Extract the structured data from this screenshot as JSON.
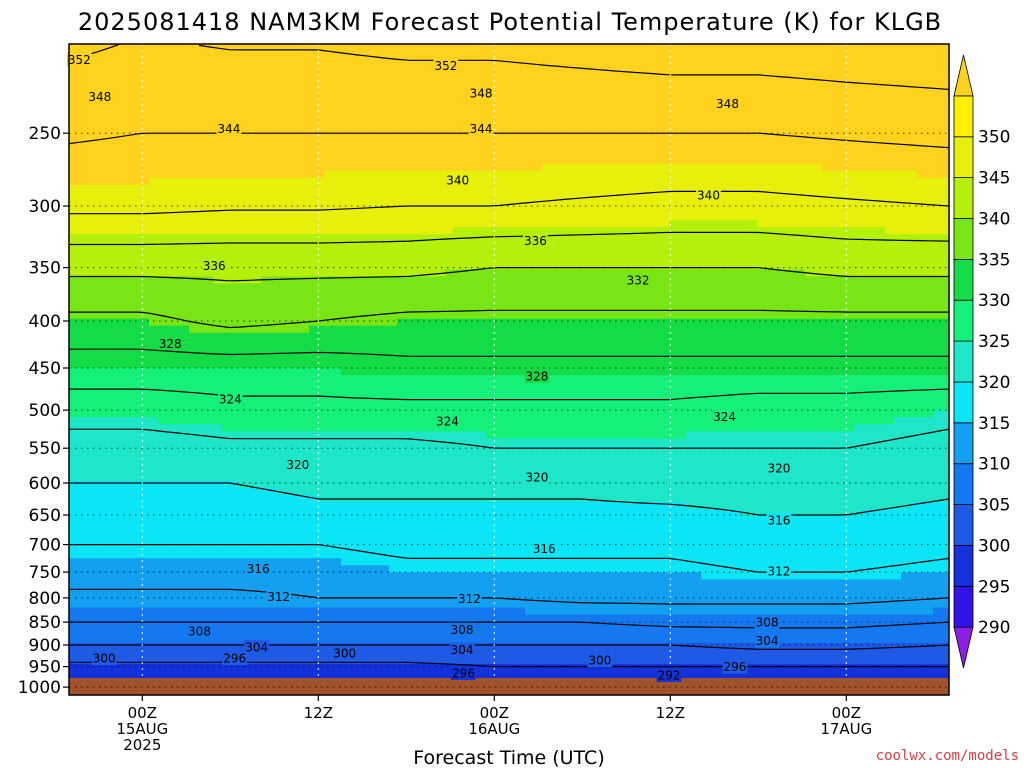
{
  "chart_data": {
    "type": "heatmap",
    "title": "2025081418 NAM3KM Forecast Potential Temperature (K) for KLGB",
    "xlabel": "Forecast Time (UTC)",
    "ylabel": "",
    "y_scale": "log",
    "y_reversed": true,
    "y_ticks": [
      250,
      300,
      350,
      400,
      450,
      500,
      550,
      600,
      650,
      700,
      750,
      800,
      850,
      900,
      950,
      1000
    ],
    "ylim": [
      1020,
      200
    ],
    "x_range_hours": [
      -5,
      55
    ],
    "x_ticks": [
      {
        "hour": 0,
        "lines": [
          "00Z",
          "15AUG",
          "2025"
        ]
      },
      {
        "hour": 12,
        "lines": [
          "12Z"
        ]
      },
      {
        "hour": 24,
        "lines": [
          "00Z",
          "16AUG"
        ]
      },
      {
        "hour": 36,
        "lines": [
          "12Z"
        ]
      },
      {
        "hour": 48,
        "lines": [
          "00Z",
          "17AUG"
        ]
      }
    ],
    "grid": "dotted",
    "colorbar": {
      "levels": [
        290,
        295,
        300,
        305,
        310,
        315,
        320,
        325,
        330,
        335,
        340,
        345,
        350
      ],
      "colors": [
        "#8c1ee6",
        "#3214e6",
        "#1432dc",
        "#1e5ae6",
        "#1478f0",
        "#14a0f0",
        "#0ae6f5",
        "#1ee6c8",
        "#14f078",
        "#14dc46",
        "#78e614",
        "#b4f00a",
        "#e6f00a",
        "#fff000",
        "#ffd21e"
      ],
      "labels": [
        "290",
        "295",
        "300",
        "305",
        "310",
        "315",
        "320",
        "325",
        "330",
        "335",
        "340",
        "345",
        "350"
      ]
    },
    "contour_interval": 4,
    "profiles": [
      {
        "hour": -5,
        "theta": [
          352.5,
          349,
          341,
          335,
          330,
          326,
          322,
          320,
          318,
          316,
          314,
          311,
          308,
          304,
          299,
          296
        ]
      },
      {
        "hour": 0,
        "theta": [
          352,
          349,
          341,
          335,
          330,
          326,
          322,
          320,
          318,
          316,
          314,
          311,
          308,
          304,
          299,
          296
        ]
      },
      {
        "hour": 6,
        "theta": [
          352,
          348.5,
          341,
          337,
          330,
          327,
          323,
          320,
          318,
          316,
          314,
          311,
          308,
          304,
          299,
          296
        ]
      },
      {
        "hour": 12,
        "theta": [
          352,
          348.5,
          341,
          336,
          330,
          327,
          323,
          321,
          319,
          316,
          314,
          312,
          308,
          304,
          299,
          296
        ]
      },
      {
        "hour": 18,
        "theta": [
          352,
          348,
          341,
          335,
          331,
          327,
          323,
          321,
          319,
          317,
          315,
          312,
          308,
          304,
          299,
          296
        ]
      },
      {
        "hour": 24,
        "theta": [
          352,
          348,
          340,
          335,
          331,
          327,
          324,
          321,
          319,
          317,
          315,
          312,
          308,
          304,
          300,
          296
        ]
      },
      {
        "hour": 30,
        "theta": [
          352,
          347.5,
          340,
          335,
          331,
          327,
          324,
          321,
          319,
          317,
          315,
          313,
          308,
          304,
          300,
          296
        ]
      },
      {
        "hour": 36,
        "theta": [
          352,
          347,
          340,
          335,
          331,
          327,
          324,
          322,
          319,
          317,
          315,
          313,
          309,
          304,
          300,
          293
        ]
      },
      {
        "hour": 42,
        "theta": [
          352,
          347,
          340,
          335,
          331,
          326,
          324,
          322,
          320,
          318,
          316,
          313,
          309,
          305,
          300,
          294
        ]
      },
      {
        "hour": 48,
        "theta": [
          352.5,
          347.5,
          341,
          335,
          331,
          326,
          324,
          322,
          320,
          318,
          316,
          313,
          309,
          305,
          300,
          296
        ]
      },
      {
        "hour": 55,
        "theta": [
          353,
          348,
          341,
          335,
          331,
          325,
          323,
          321,
          319,
          317,
          315,
          312,
          308,
          304,
          300,
          296
        ]
      }
    ],
    "contour_labels": [
      {
        "hour": -4.3,
        "p": 208,
        "text": "352"
      },
      {
        "hour": 20.7,
        "p": 211,
        "text": "352"
      },
      {
        "hour": -2.9,
        "p": 228,
        "text": "348"
      },
      {
        "hour": 23.1,
        "p": 226,
        "text": "348"
      },
      {
        "hour": 39.9,
        "p": 232,
        "text": "348"
      },
      {
        "hour": 5.9,
        "p": 247,
        "text": "344"
      },
      {
        "hour": 23.1,
        "p": 247,
        "text": "344"
      },
      {
        "hour": 21.5,
        "p": 281,
        "text": "340"
      },
      {
        "hour": 38.6,
        "p": 292,
        "text": "340"
      },
      {
        "hour": 26.8,
        "p": 327,
        "text": "336"
      },
      {
        "hour": 4.9,
        "p": 348,
        "text": "336"
      },
      {
        "hour": 33.8,
        "p": 361,
        "text": "332"
      },
      {
        "hour": 1.9,
        "p": 423,
        "text": "328"
      },
      {
        "hour": 26.9,
        "p": 459,
        "text": "328"
      },
      {
        "hour": 6.0,
        "p": 486,
        "text": "324"
      },
      {
        "hour": 20.8,
        "p": 514,
        "text": "324"
      },
      {
        "hour": 39.7,
        "p": 508,
        "text": "324"
      },
      {
        "hour": 10.6,
        "p": 573,
        "text": "320"
      },
      {
        "hour": 26.9,
        "p": 591,
        "text": "320"
      },
      {
        "hour": 43.4,
        "p": 578,
        "text": "320"
      },
      {
        "hour": 43.4,
        "p": 658,
        "text": "316"
      },
      {
        "hour": 27.4,
        "p": 707,
        "text": "316"
      },
      {
        "hour": 7.9,
        "p": 743,
        "text": "316"
      },
      {
        "hour": 43.4,
        "p": 748,
        "text": "312"
      },
      {
        "hour": 9.3,
        "p": 797,
        "text": "312"
      },
      {
        "hour": 22.3,
        "p": 801,
        "text": "312"
      },
      {
        "hour": 3.9,
        "p": 869,
        "text": "308"
      },
      {
        "hour": 21.8,
        "p": 866,
        "text": "308"
      },
      {
        "hour": 42.6,
        "p": 850,
        "text": "308"
      },
      {
        "hour": 7.8,
        "p": 904,
        "text": "304"
      },
      {
        "hour": 21.8,
        "p": 910,
        "text": "304"
      },
      {
        "hour": 42.6,
        "p": 890,
        "text": "304"
      },
      {
        "hour": 6.3,
        "p": 930,
        "text": "296"
      },
      {
        "hour": 13.8,
        "p": 918,
        "text": "300"
      },
      {
        "hour": -2.6,
        "p": 930,
        "text": "300"
      },
      {
        "hour": 31.2,
        "p": 935,
        "text": "300"
      },
      {
        "hour": 21.9,
        "p": 965,
        "text": "296"
      },
      {
        "hour": 40.4,
        "p": 950,
        "text": "296"
      },
      {
        "hour": 35.9,
        "p": 970,
        "text": "292"
      }
    ]
  },
  "credit": "coolwx.com/models"
}
